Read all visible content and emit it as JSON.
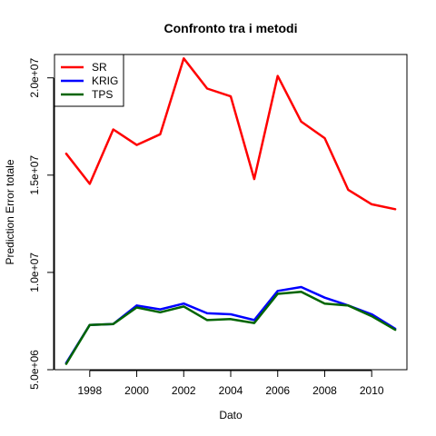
{
  "chart_data": {
    "type": "line",
    "title": "Confronto tra i metodi",
    "xlabel": "Dato",
    "ylabel": "Prediction Error totale",
    "xlim": [
      1996.5,
      2011.5
    ],
    "ylim": [
      5000000,
      21200000
    ],
    "x_ticks": [
      1998,
      2000,
      2002,
      2004,
      2006,
      2008,
      2010
    ],
    "x_tick_labels": [
      "1998",
      "2000",
      "2002",
      "2004",
      "2006",
      "2008",
      "2010"
    ],
    "y_ticks": [
      5000000,
      10000000,
      15000000,
      20000000
    ],
    "y_tick_labels": [
      "5.0e+06",
      "1.0e+07",
      "1.5e+07",
      "2.0e+07"
    ],
    "grid": false,
    "legend_position": "top-left",
    "x": [
      1997,
      1998,
      1999,
      2000,
      2001,
      2002,
      2003,
      2004,
      2005,
      2006,
      2007,
      2008,
      2009,
      2010,
      2011
    ],
    "series": [
      {
        "name": "SR",
        "color": "#ff0000",
        "values": [
          16100000,
          14550000,
          17350000,
          16550000,
          17100000,
          21000000,
          19450000,
          19050000,
          14800000,
          20100000,
          17750000,
          16900000,
          14250000,
          13500000,
          13250000
        ]
      },
      {
        "name": "KRIG",
        "color": "#0000ff",
        "values": [
          5350000,
          7300000,
          7350000,
          8300000,
          8100000,
          8400000,
          7900000,
          7850000,
          7550000,
          9050000,
          9250000,
          8700000,
          8300000,
          7850000,
          7100000
        ]
      },
      {
        "name": "TPS",
        "color": "#006400",
        "values": [
          5300000,
          7300000,
          7350000,
          8200000,
          7950000,
          8250000,
          7550000,
          7600000,
          7400000,
          8900000,
          9000000,
          8400000,
          8300000,
          7750000,
          7050000
        ]
      }
    ]
  }
}
